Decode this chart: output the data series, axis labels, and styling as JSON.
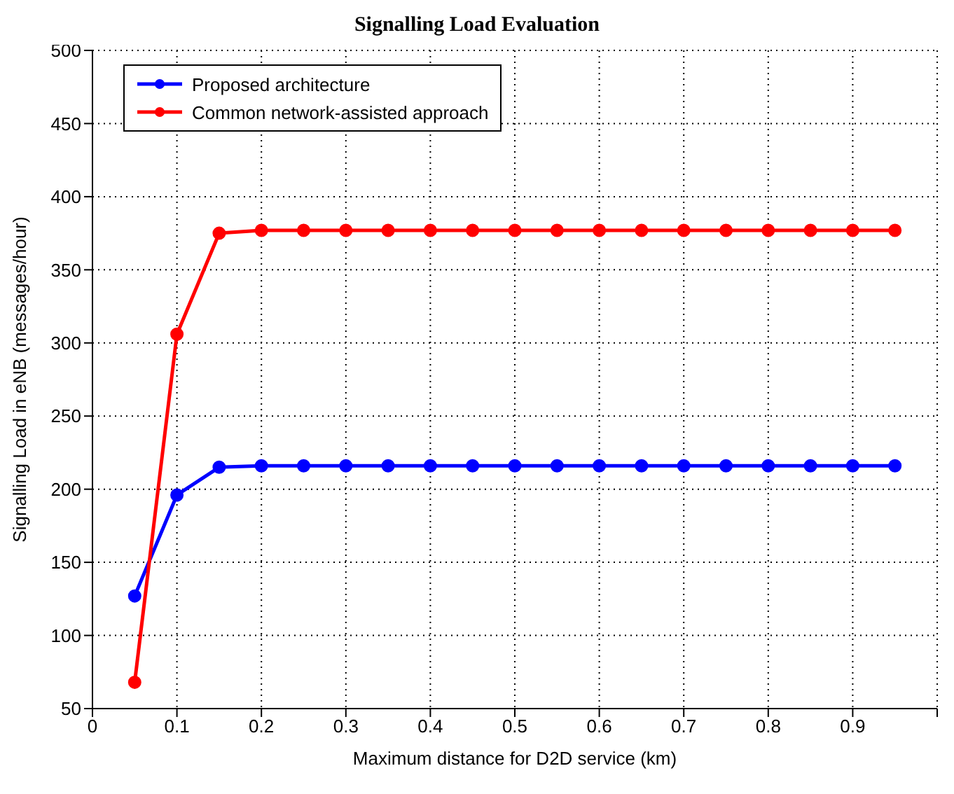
{
  "chart_data": {
    "type": "line",
    "title": "Signalling Load Evaluation",
    "xlabel": "Maximum distance for D2D service (km)",
    "ylabel": "Signalling Load in eNB (messages/hour)",
    "x": [
      0.05,
      0.1,
      0.15,
      0.2,
      0.25,
      0.3,
      0.35,
      0.4,
      0.45,
      0.5,
      0.55,
      0.6,
      0.65,
      0.7,
      0.75,
      0.8,
      0.85,
      0.9,
      0.95
    ],
    "series": [
      {
        "name": "Proposed architecture",
        "color": "#0000ff",
        "values": [
          127,
          196,
          215,
          216,
          216,
          216,
          216,
          216,
          216,
          216,
          216,
          216,
          216,
          216,
          216,
          216,
          216,
          216,
          216
        ]
      },
      {
        "name": "Common network-assisted approach",
        "color": "#ff0000",
        "values": [
          68,
          306,
          375,
          377,
          377,
          377,
          377,
          377,
          377,
          377,
          377,
          377,
          377,
          377,
          377,
          377,
          377,
          377,
          377
        ]
      }
    ],
    "xlim": [
      0,
      1
    ],
    "xticks": [
      0,
      0.1,
      0.2,
      0.3,
      0.4,
      0.5,
      0.6,
      0.7,
      0.8,
      0.9,
      {
        "value": 1,
        "label": null
      }
    ],
    "ylim": [
      50,
      500
    ],
    "yticks": [
      50,
      100,
      150,
      200,
      250,
      300,
      350,
      400,
      450,
      500
    ],
    "grid": true,
    "legend": "top left",
    "marker": "circle",
    "line_style": "solid"
  }
}
